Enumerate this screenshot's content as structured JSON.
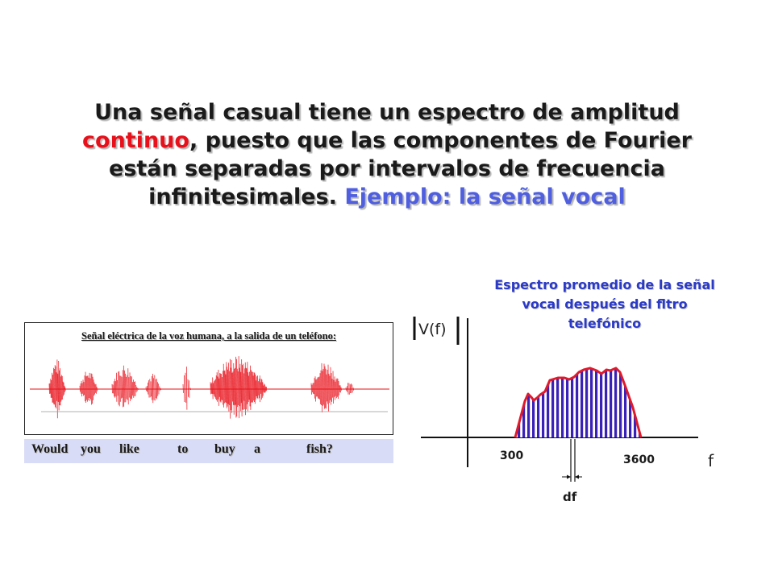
{
  "slide": {
    "title": {
      "part1": "Una señal casual tiene un espectro de amplitud ",
      "highlight_red": "continuo",
      "part2": ", puesto que las componentes de Fourier están separadas por intervalos de frecuencia infinitesimales.  ",
      "highlight_blue": "Ejemplo: la señal vocal"
    },
    "waveform": {
      "caption": "Señal eléctrica de la voz humana, a la salida de un teléfono:",
      "words": [
        "Would",
        "you",
        "like",
        "to",
        "buy",
        "a",
        "fish?"
      ]
    },
    "spectrum": {
      "title": "Espectro promedio de la señal vocal después del fltro telefónico",
      "y_label": "V(f)",
      "x_label": "f",
      "tick_low": "300",
      "tick_high": "3600",
      "interval_label": "df"
    }
  },
  "colors": {
    "title_text": "#1a1a1a",
    "highlight_red": "#e8101a",
    "highlight_blue": "#4f5fe0",
    "spectrum_title": "#2a39c8",
    "waveform": "#e8101a",
    "spectrum_outline": "#e01a2a",
    "spectrum_fill": "#3a22b8",
    "words_bar": "#d9dcf6"
  }
}
